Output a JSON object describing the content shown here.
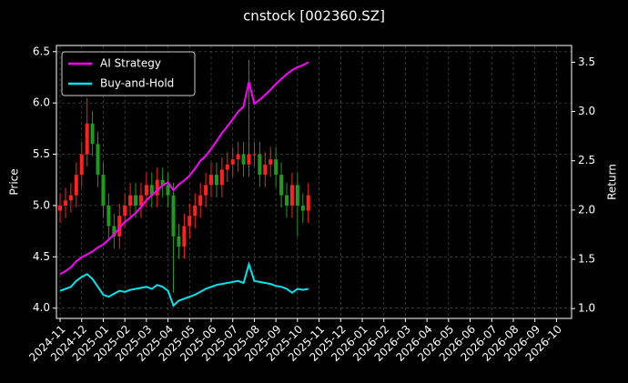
{
  "chart_data": {
    "type": "candlestick",
    "title": "cnstock [002360.SZ]",
    "ylabel": "Price",
    "y2label": "Return",
    "x": [
      0,
      0.25,
      0.5,
      0.75,
      1,
      1.25,
      1.5,
      1.75,
      2,
      2.25,
      2.5,
      2.75,
      3,
      3.25,
      3.5,
      3.75,
      4,
      4.25,
      4.5,
      4.75,
      5,
      5.25,
      5.5,
      5.75,
      6,
      6.25,
      6.5,
      6.75,
      7,
      7.25,
      7.5,
      7.75,
      8,
      8.25,
      8.5,
      8.75,
      9,
      9.25,
      9.5,
      9.75,
      10,
      10.25,
      10.5,
      10.75,
      11,
      11.25,
      11.5
    ],
    "open": [
      4.95,
      5.0,
      5.05,
      5.1,
      5.3,
      5.5,
      5.8,
      5.6,
      5.3,
      5.0,
      4.8,
      4.7,
      4.9,
      5.0,
      5.1,
      5.0,
      5.1,
      5.2,
      5.1,
      5.25,
      5.2,
      5.1,
      4.7,
      4.6,
      4.8,
      4.9,
      5.0,
      5.1,
      5.2,
      5.3,
      5.2,
      5.35,
      5.4,
      5.45,
      5.5,
      5.4,
      5.5,
      5.5,
      5.3,
      5.4,
      5.45,
      5.3,
      5.1,
      5.0,
      5.2,
      5.0,
      4.95
    ],
    "high": [
      5.12,
      5.17,
      5.22,
      5.42,
      5.62,
      6.05,
      5.92,
      5.72,
      5.42,
      5.12,
      4.92,
      5.02,
      5.12,
      5.22,
      5.22,
      5.22,
      5.32,
      5.32,
      5.37,
      5.37,
      5.32,
      5.22,
      4.82,
      4.92,
      5.02,
      5.12,
      5.22,
      5.32,
      5.42,
      5.42,
      5.47,
      5.52,
      5.57,
      5.62,
      5.62,
      6.42,
      5.62,
      5.62,
      5.52,
      5.57,
      5.57,
      5.42,
      5.22,
      5.32,
      5.32,
      5.12,
      5.22
    ],
    "low": [
      4.83,
      4.88,
      4.93,
      4.98,
      5.18,
      5.38,
      5.48,
      5.18,
      4.88,
      4.68,
      4.58,
      4.58,
      4.78,
      4.88,
      4.88,
      4.88,
      4.98,
      4.98,
      4.98,
      5.08,
      4.98,
      4.15,
      4.48,
      4.48,
      4.68,
      4.78,
      4.88,
      4.98,
      5.08,
      5.08,
      5.08,
      5.23,
      5.28,
      5.33,
      5.28,
      5.28,
      5.38,
      5.18,
      5.18,
      5.28,
      5.18,
      4.98,
      4.88,
      4.88,
      4.7,
      4.83,
      4.83
    ],
    "close": [
      5.0,
      5.05,
      5.1,
      5.3,
      5.5,
      5.8,
      5.6,
      5.3,
      5.0,
      4.8,
      4.7,
      4.9,
      5.0,
      5.1,
      5.0,
      5.1,
      5.2,
      5.1,
      5.25,
      5.2,
      5.1,
      4.7,
      4.6,
      4.8,
      4.9,
      5.0,
      5.1,
      5.2,
      5.3,
      5.2,
      5.35,
      5.4,
      5.45,
      5.5,
      5.4,
      5.5,
      5.5,
      5.3,
      5.4,
      5.45,
      5.3,
      5.1,
      5.0,
      5.2,
      5.0,
      4.95,
      5.1
    ],
    "up_color": "#ff2020",
    "down_color": "#1f9a1f",
    "series": [
      {
        "name": "AI Strategy",
        "color": "#ff00ff",
        "axis": "y2",
        "values": [
          1.35,
          1.38,
          1.42,
          1.48,
          1.52,
          1.55,
          1.58,
          1.62,
          1.65,
          1.7,
          1.75,
          1.82,
          1.88,
          1.92,
          1.97,
          2.03,
          2.1,
          2.15,
          2.2,
          2.25,
          2.28,
          2.2,
          2.26,
          2.3,
          2.35,
          2.42,
          2.5,
          2.55,
          2.62,
          2.7,
          2.78,
          2.85,
          2.92,
          3.0,
          3.05,
          3.3,
          3.08,
          3.12,
          3.17,
          3.22,
          3.28,
          3.33,
          3.38,
          3.42,
          3.45,
          3.47,
          3.5
        ]
      },
      {
        "name": "Buy-and-Hold",
        "color": "#00e5ee",
        "axis": "y2",
        "values": [
          1.18,
          1.2,
          1.22,
          1.28,
          1.32,
          1.35,
          1.3,
          1.22,
          1.14,
          1.12,
          1.15,
          1.18,
          1.17,
          1.19,
          1.2,
          1.21,
          1.22,
          1.2,
          1.24,
          1.22,
          1.18,
          1.03,
          1.08,
          1.1,
          1.12,
          1.14,
          1.17,
          1.2,
          1.22,
          1.24,
          1.25,
          1.26,
          1.27,
          1.28,
          1.26,
          1.45,
          1.28,
          1.27,
          1.26,
          1.25,
          1.23,
          1.22,
          1.2,
          1.16,
          1.2,
          1.19,
          1.2
        ]
      }
    ],
    "xlim": [
      -0.17,
      23.7
    ],
    "xticks": [
      {
        "value": 0,
        "label": "2024-11"
      },
      {
        "value": 1,
        "label": "2024-12"
      },
      {
        "value": 2,
        "label": "2025-01"
      },
      {
        "value": 3,
        "label": "2025-02"
      },
      {
        "value": 4,
        "label": "2025-03"
      },
      {
        "value": 5,
        "label": "2025-04"
      },
      {
        "value": 6,
        "label": "2025-05"
      },
      {
        "value": 7,
        "label": "2025-06"
      },
      {
        "value": 8,
        "label": "2025-07"
      },
      {
        "value": 9,
        "label": "2025-08"
      },
      {
        "value": 10,
        "label": "2025-09"
      },
      {
        "value": 11,
        "label": "2025-10"
      },
      {
        "value": 12,
        "label": "2025-11"
      },
      {
        "value": 13,
        "label": "2025-12"
      },
      {
        "value": 14,
        "label": "2026-01"
      },
      {
        "value": 15,
        "label": "2026-02"
      },
      {
        "value": 16,
        "label": "2026-03"
      },
      {
        "value": 17,
        "label": "2026-04"
      },
      {
        "value": 18,
        "label": "2026-05"
      },
      {
        "value": 19,
        "label": "2026-06"
      },
      {
        "value": 20,
        "label": "2026-07"
      },
      {
        "value": 21,
        "label": "2026-08"
      },
      {
        "value": 22,
        "label": "2026-09"
      },
      {
        "value": 23,
        "label": "2026-10"
      }
    ],
    "ylim": [
      3.9,
      6.56
    ],
    "yticks": [
      {
        "value": 4,
        "label": "4.0"
      },
      4.5,
      {
        "value": 5,
        "label": "5.0"
      },
      5.5,
      {
        "value": 6,
        "label": "6.0"
      },
      6.5
    ],
    "y2lim": [
      0.9,
      3.67
    ],
    "y2ticks": [
      {
        "value": 1,
        "label": "1.0"
      },
      1.5,
      {
        "value": 2,
        "label": "2.0"
      },
      2.5,
      {
        "value": 3,
        "label": "3.0"
      },
      3.5
    ],
    "grid": true,
    "legend": "upper left"
  }
}
